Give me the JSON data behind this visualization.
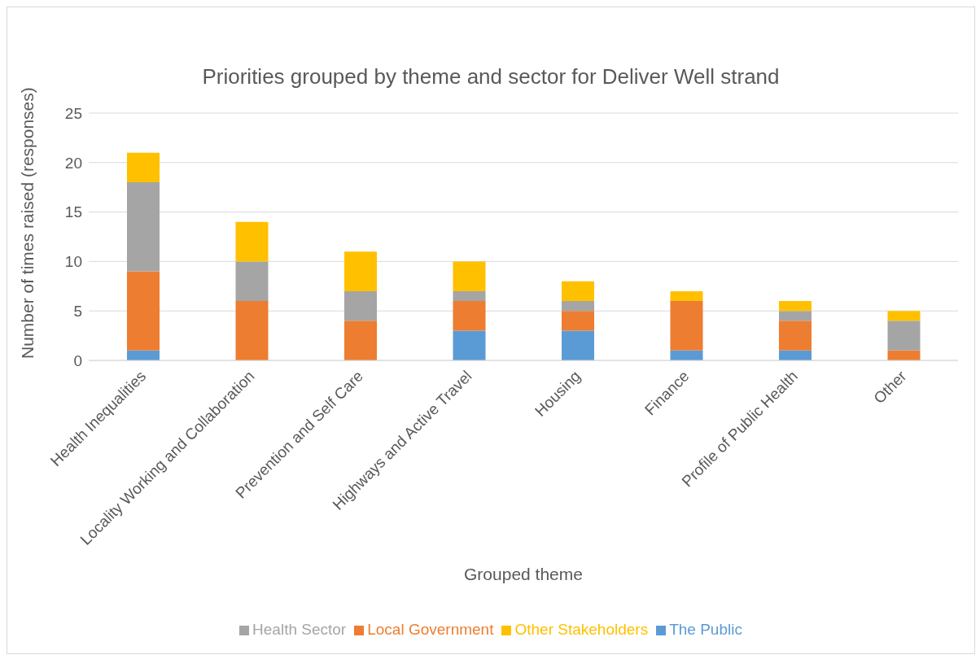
{
  "chart_data": {
    "type": "bar",
    "title": "Priorities grouped by theme and sector for Deliver Well strand",
    "xlabel": "Grouped theme",
    "ylabel": "Number of times raised (responses)",
    "categories": [
      "Health Inequalities",
      "Locality Working and Collaboration",
      "Prevention and Self Care",
      "Highways and Active Travel",
      "Housing",
      "Finance",
      "Profile of Public Health",
      "Other"
    ],
    "series": [
      {
        "name": "The Public",
        "color": "#5b9bd5",
        "values": [
          1,
          0,
          0,
          3,
          3,
          1,
          1,
          0
        ]
      },
      {
        "name": "Local Government",
        "color": "#ed7d31",
        "values": [
          8,
          6,
          4,
          3,
          2,
          5,
          3,
          1
        ]
      },
      {
        "name": "Health Sector",
        "color": "#a5a5a5",
        "values": [
          9,
          4,
          3,
          1,
          1,
          0,
          1,
          3
        ]
      },
      {
        "name": "Other Stakeholders",
        "color": "#ffc000",
        "values": [
          3,
          4,
          4,
          3,
          2,
          1,
          1,
          1
        ]
      }
    ],
    "stacked": true,
    "ylim": [
      0,
      25
    ],
    "yticks": [
      0,
      5,
      10,
      15,
      20,
      25
    ],
    "grid": "y",
    "legend": "bottom"
  }
}
